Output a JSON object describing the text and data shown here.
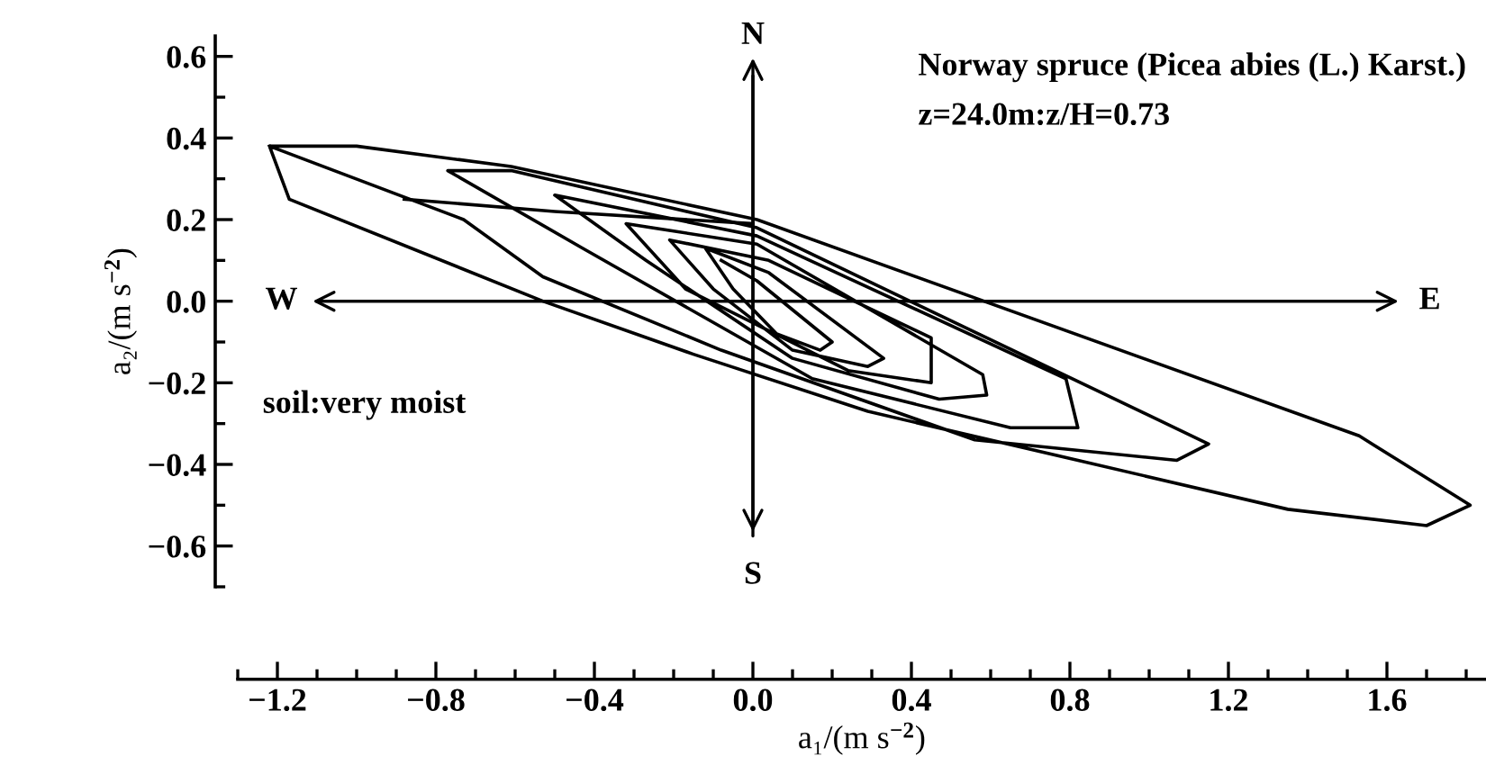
{
  "chart_data": {
    "type": "line",
    "xlabel": "a₁/(m s$^{−2}$)",
    "ylabel": "a₂/(m s$^{−2}$)",
    "annotations": [
      "Norway spruce (Picea abies (L.) Karst.)",
      "z=24.0m:z/H=0.73",
      "soil:very moist",
      "N",
      "S",
      "W",
      "E"
    ],
    "series": [
      {
        "color": "#000000",
        "x": [
          -0.08,
          0.01,
          0.2,
          0.17,
          0.06,
          -0.05,
          -0.12,
          0.04,
          0.33,
          0.29,
          0.1,
          -0.1,
          -0.21,
          0.04,
          0.45,
          0.45,
          0.24,
          -0.17,
          -0.32,
          0.01,
          0.58,
          0.59,
          0.47,
          0.1,
          -0.27,
          -0.5,
          0.01,
          0.79,
          0.82,
          0.65,
          0.15,
          -0.43,
          -0.77,
          -0.61,
          0.01,
          1.15,
          1.07,
          0.56,
          -0.08,
          -0.53,
          -0.73,
          -1.22,
          -1.0,
          -0.61,
          0.01,
          1.53,
          1.81,
          1.7,
          1.35,
          0.29,
          -0.15,
          -0.53,
          -1.17,
          -1.22
        ],
        "values": [
          0.1,
          0.05,
          -0.1,
          -0.12,
          -0.08,
          0.03,
          0.13,
          0.07,
          -0.14,
          -0.16,
          -0.12,
          0.03,
          0.15,
          0.1,
          -0.09,
          -0.2,
          -0.17,
          0.03,
          0.19,
          0.14,
          -0.18,
          -0.23,
          -0.24,
          -0.14,
          0.1,
          0.26,
          0.16,
          -0.19,
          -0.31,
          -0.31,
          -0.19,
          0.13,
          0.32,
          0.32,
          0.18,
          -0.35,
          -0.39,
          -0.34,
          -0.12,
          0.06,
          0.2,
          0.38,
          0.38,
          0.33,
          0.2,
          -0.33,
          -0.5,
          -0.55,
          -0.51,
          -0.27,
          -0.13,
          0.0,
          0.25,
          0.38
        ]
      },
      {
        "color": "#000000",
        "x": [
          -0.88,
          -0.5,
          0.0
        ],
        "values": [
          0.25,
          0.22,
          0.19
        ]
      }
    ],
    "xlim": [
      -1.3,
      1.85
    ],
    "ylim": [
      -0.7,
      0.65
    ],
    "xticks": [
      {
        "value": -1.2,
        "label": "−1.2"
      },
      {
        "value": -0.8,
        "label": "−0.8"
      },
      {
        "value": -0.4,
        "label": "−0.4"
      },
      {
        "value": 0.0,
        "label": "0.0"
      },
      {
        "value": 0.4,
        "label": "0.4"
      },
      {
        "value": 0.8,
        "label": "0.8"
      },
      {
        "value": 1.2,
        "label": "1.2"
      },
      {
        "value": 1.6,
        "label": "1.6"
      }
    ],
    "yticks": [
      {
        "value": -0.6,
        "label": "−0.6"
      },
      {
        "value": -0.4,
        "label": "−0.4"
      },
      {
        "value": -0.2,
        "label": "−0.2"
      },
      {
        "value": 0.0,
        "label": "0.0"
      },
      {
        "value": 0.2,
        "label": "0.2"
      },
      {
        "value": 0.4,
        "label": "0.4"
      },
      {
        "value": 0.6,
        "label": "0.6"
      }
    ],
    "grid": false,
    "legend": false,
    "marker": "none",
    "line_style": "solid"
  }
}
